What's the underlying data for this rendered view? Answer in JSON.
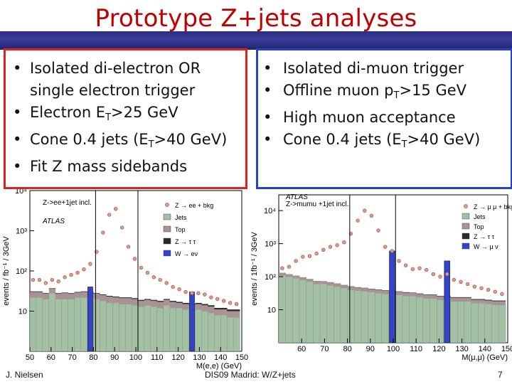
{
  "slide": {
    "title": "Prototype Z+jets analyses",
    "left_bullets": [
      {
        "main": "Isolated di-electron OR single electron trigger"
      },
      {
        "pre": "Electron E",
        "sub": "T",
        "post": ">25 GeV"
      },
      {
        "pre": "Cone 0.4 jets (E",
        "sub": "T",
        "post": ">40 GeV)"
      },
      {
        "main": "Fit Z mass sidebands"
      }
    ],
    "right_bullets": [
      {
        "main": "Isolated di-muon trigger"
      },
      {
        "pre": "Offline muon p",
        "sub": "T",
        "post": ">15 GeV"
      },
      {
        "main": "High muon acceptance"
      },
      {
        "pre": "Cone 0.4 jets (E",
        "sub": "T",
        "post": ">40 GeV)"
      }
    ],
    "footer": {
      "author": "J. Nielsen",
      "conference": "DIS09 Madrid: W/Z+jets",
      "page": "7"
    }
  },
  "colors": {
    "title": "#c00000",
    "bar": "#2b2d7c",
    "jets": "#a4c0a4",
    "top": "#a89294",
    "ztt": "#2a2a2a",
    "wlnu": "#3344cc",
    "data": "#dd9a88"
  },
  "chart_data": [
    {
      "type": "bar",
      "title": "Z->ee+1jet incl.",
      "subtitle": "ATLAS",
      "xlabel": "M(e,e) (GeV)",
      "ylabel": "events / fb⁻¹ / 3GeV",
      "xlim": [
        50,
        150
      ],
      "ylog": true,
      "ylim": [
        1,
        10000
      ],
      "xticks": [
        "50",
        "60",
        "70",
        "80",
        "90",
        "100",
        "110",
        "120",
        "130",
        "140",
        "150"
      ],
      "yticks": [
        "10",
        "10²",
        "10³",
        "10⁴"
      ],
      "legend": [
        "Z → ee + bkg",
        "Jets",
        "Top",
        "Z → τ τ",
        "W → eν"
      ],
      "bins": [
        {
          "x": 51.5,
          "jets": 22,
          "top": 8,
          "ztt": 1,
          "wlnu": 0,
          "data": 60
        },
        {
          "x": 54.5,
          "jets": 22,
          "top": 8,
          "ztt": 1,
          "wlnu": 0,
          "data": 60
        },
        {
          "x": 57.5,
          "jets": 20,
          "top": 7,
          "ztt": 1,
          "wlnu": 0,
          "data": 50
        },
        {
          "x": 60.5,
          "jets": 28,
          "top": 8,
          "ztt": 1,
          "wlnu": 0,
          "data": 60
        },
        {
          "x": 63.5,
          "jets": 20,
          "top": 7,
          "ztt": 1,
          "wlnu": 0,
          "data": 55
        },
        {
          "x": 66.5,
          "jets": 20,
          "top": 8,
          "ztt": 1,
          "wlnu": 0,
          "data": 70
        },
        {
          "x": 69.5,
          "jets": 20,
          "top": 7,
          "ztt": 1,
          "wlnu": 0,
          "data": 80
        },
        {
          "x": 72.5,
          "jets": 22,
          "top": 7,
          "ztt": 1,
          "wlnu": 0,
          "data": 90
        },
        {
          "x": 75.5,
          "jets": 22,
          "top": 8,
          "ztt": 1,
          "wlnu": 0,
          "data": 110
        },
        {
          "x": 78.5,
          "jets": 22,
          "top": 7,
          "ztt": 1,
          "wlnu": 40,
          "data": 150
        },
        {
          "x": 81.5,
          "jets": 20,
          "top": 7,
          "ztt": 1,
          "wlnu": 0,
          "data": 300
        },
        {
          "x": 84.5,
          "jets": 18,
          "top": 7,
          "ztt": 1,
          "wlnu": 0,
          "data": 900
        },
        {
          "x": 87.5,
          "jets": 16,
          "top": 7,
          "ztt": 1,
          "wlnu": 0,
          "data": 2500
        },
        {
          "x": 90.5,
          "jets": 16,
          "top": 6,
          "ztt": 1,
          "wlnu": 0,
          "data": 3500
        },
        {
          "x": 93.5,
          "jets": 15,
          "top": 6,
          "ztt": 1,
          "wlnu": 0,
          "data": 1200
        },
        {
          "x": 96.5,
          "jets": 15,
          "top": 6,
          "ztt": 1,
          "wlnu": 0,
          "data": 400
        },
        {
          "x": 99.5,
          "jets": 14,
          "top": 6,
          "ztt": 1,
          "wlnu": 0,
          "data": 200
        },
        {
          "x": 102.5,
          "jets": 13,
          "top": 5,
          "ztt": 1,
          "wlnu": 0,
          "data": 120
        },
        {
          "x": 105.5,
          "jets": 14,
          "top": 5,
          "ztt": 1,
          "wlnu": 0,
          "data": 90
        },
        {
          "x": 108.5,
          "jets": 13,
          "top": 5,
          "ztt": 1,
          "wlnu": 0,
          "data": 70
        },
        {
          "x": 111.5,
          "jets": 12,
          "top": 5,
          "ztt": 1,
          "wlnu": 0,
          "data": 60
        },
        {
          "x": 114.5,
          "jets": 14,
          "top": 5,
          "ztt": 1,
          "wlnu": 0,
          "data": 50
        },
        {
          "x": 117.5,
          "jets": 12,
          "top": 5,
          "ztt": 1,
          "wlnu": 0,
          "data": 40
        },
        {
          "x": 120.5,
          "jets": 12,
          "top": 4,
          "ztt": 1,
          "wlnu": 0,
          "data": 35
        },
        {
          "x": 123.5,
          "jets": 11,
          "top": 4,
          "ztt": 1,
          "wlnu": 0,
          "data": 30
        },
        {
          "x": 126.5,
          "jets": 10,
          "top": 4,
          "ztt": 1,
          "wlnu": 30,
          "data": 28
        },
        {
          "x": 129.5,
          "jets": 11,
          "top": 4,
          "ztt": 1,
          "wlnu": 0,
          "data": 28
        },
        {
          "x": 132.5,
          "jets": 10,
          "top": 4,
          "ztt": 1,
          "wlnu": 0,
          "data": 26
        },
        {
          "x": 135.5,
          "jets": 9,
          "top": 4,
          "ztt": 1,
          "wlnu": 0,
          "data": 22
        },
        {
          "x": 138.5,
          "jets": 8,
          "top": 3,
          "ztt": 1,
          "wlnu": 0,
          "data": 20
        },
        {
          "x": 141.5,
          "jets": 8,
          "top": 3,
          "ztt": 1,
          "wlnu": 0,
          "data": 18
        },
        {
          "x": 144.5,
          "jets": 7,
          "top": 3,
          "ztt": 1,
          "wlnu": 0,
          "data": 16
        },
        {
          "x": 147.5,
          "jets": 7,
          "top": 3,
          "ztt": 1,
          "wlnu": 0,
          "data": 15
        }
      ]
    },
    {
      "type": "bar",
      "title": "Z->mumu +1jet incl.",
      "subtitle": "ATLAS",
      "xlabel": "M(μ,μ) (GeV)",
      "ylabel": "events / 1fb⁻¹ / 3GeV",
      "xlim": [
        50,
        150
      ],
      "ylog": true,
      "ylim": [
        1,
        30000
      ],
      "xticks": [
        "60",
        "70",
        "80",
        "90",
        "100",
        "110",
        "120",
        "130",
        "140",
        "150"
      ],
      "yticks": [
        "10",
        "10²",
        "10³",
        "10⁴"
      ],
      "legend": [
        "Z → μ μ + bkg",
        "Jets",
        "Top",
        "Z → τ τ",
        "W → μ ν"
      ],
      "bins": [
        {
          "x": 51.5,
          "jets": 110,
          "top": 20,
          "ztt": 1,
          "wlnu": 0,
          "data": 180
        },
        {
          "x": 54.5,
          "jets": 100,
          "top": 18,
          "ztt": 1,
          "wlnu": 0,
          "data": 200
        },
        {
          "x": 57.5,
          "jets": 90,
          "top": 16,
          "ztt": 1,
          "wlnu": 0,
          "data": 300
        },
        {
          "x": 60.5,
          "jets": 80,
          "top": 15,
          "ztt": 1,
          "wlnu": 0,
          "data": 400
        },
        {
          "x": 63.5,
          "jets": 70,
          "top": 14,
          "ztt": 1,
          "wlnu": 0,
          "data": 420
        },
        {
          "x": 66.5,
          "jets": 60,
          "top": 13,
          "ztt": 1,
          "wlnu": 0,
          "data": 500
        },
        {
          "x": 69.5,
          "jets": 60,
          "top": 12,
          "ztt": 1,
          "wlnu": 0,
          "data": 650
        },
        {
          "x": 72.5,
          "jets": 55,
          "top": 12,
          "ztt": 1,
          "wlnu": 0,
          "data": 800
        },
        {
          "x": 75.5,
          "jets": 50,
          "top": 11,
          "ztt": 1,
          "wlnu": 0,
          "data": 900
        },
        {
          "x": 78.5,
          "jets": 45,
          "top": 10,
          "ztt": 1,
          "wlnu": 0,
          "data": 1100
        },
        {
          "x": 81.5,
          "jets": 40,
          "top": 10,
          "ztt": 1,
          "wlnu": 0,
          "data": 2000
        },
        {
          "x": 84.5,
          "jets": 38,
          "top": 9,
          "ztt": 1,
          "wlnu": 0,
          "data": 5000
        },
        {
          "x": 87.5,
          "jets": 36,
          "top": 9,
          "ztt": 1,
          "wlnu": 0,
          "data": 10000
        },
        {
          "x": 90.5,
          "jets": 34,
          "top": 8,
          "ztt": 1,
          "wlnu": 0,
          "data": 7000
        },
        {
          "x": 93.5,
          "jets": 32,
          "top": 8,
          "ztt": 1,
          "wlnu": 0,
          "data": 2500
        },
        {
          "x": 96.5,
          "jets": 30,
          "top": 8,
          "ztt": 1,
          "wlnu": 0,
          "data": 800
        },
        {
          "x": 99.5,
          "jets": 28,
          "top": 7,
          "ztt": 1,
          "wlnu": 600,
          "data": 600
        },
        {
          "x": 102.5,
          "jets": 28,
          "top": 7,
          "ztt": 1,
          "wlnu": 0,
          "data": 300
        },
        {
          "x": 105.5,
          "jets": 26,
          "top": 7,
          "ztt": 1,
          "wlnu": 0,
          "data": 220
        },
        {
          "x": 108.5,
          "jets": 26,
          "top": 6,
          "ztt": 1,
          "wlnu": 0,
          "data": 170
        },
        {
          "x": 111.5,
          "jets": 24,
          "top": 6,
          "ztt": 1,
          "wlnu": 0,
          "data": 180
        },
        {
          "x": 114.5,
          "jets": 22,
          "top": 6,
          "ztt": 1,
          "wlnu": 0,
          "data": 160
        },
        {
          "x": 117.5,
          "jets": 22,
          "top": 6,
          "ztt": 1,
          "wlnu": 0,
          "data": 120
        },
        {
          "x": 120.5,
          "jets": 20,
          "top": 5,
          "ztt": 1,
          "wlnu": 0,
          "data": 100
        },
        {
          "x": 123.5,
          "jets": 20,
          "top": 5,
          "ztt": 1,
          "wlnu": 300,
          "data": 120
        },
        {
          "x": 126.5,
          "jets": 18,
          "top": 5,
          "ztt": 1,
          "wlnu": 0,
          "data": 80
        },
        {
          "x": 129.5,
          "jets": 18,
          "top": 5,
          "ztt": 1,
          "wlnu": 0,
          "data": 70
        },
        {
          "x": 132.5,
          "jets": 18,
          "top": 5,
          "ztt": 1,
          "wlnu": 0,
          "data": 60
        },
        {
          "x": 135.5,
          "jets": 16,
          "top": 4,
          "ztt": 1,
          "wlnu": 0,
          "data": 50
        },
        {
          "x": 138.5,
          "jets": 16,
          "top": 4,
          "ztt": 1,
          "wlnu": 0,
          "data": 45
        },
        {
          "x": 141.5,
          "jets": 15,
          "top": 4,
          "ztt": 1,
          "wlnu": 0,
          "data": 40
        },
        {
          "x": 144.5,
          "jets": 14,
          "top": 4,
          "ztt": 1,
          "wlnu": 0,
          "data": 35
        },
        {
          "x": 147.5,
          "jets": 14,
          "top": 4,
          "ztt": 1,
          "wlnu": 0,
          "data": 30
        }
      ]
    }
  ]
}
